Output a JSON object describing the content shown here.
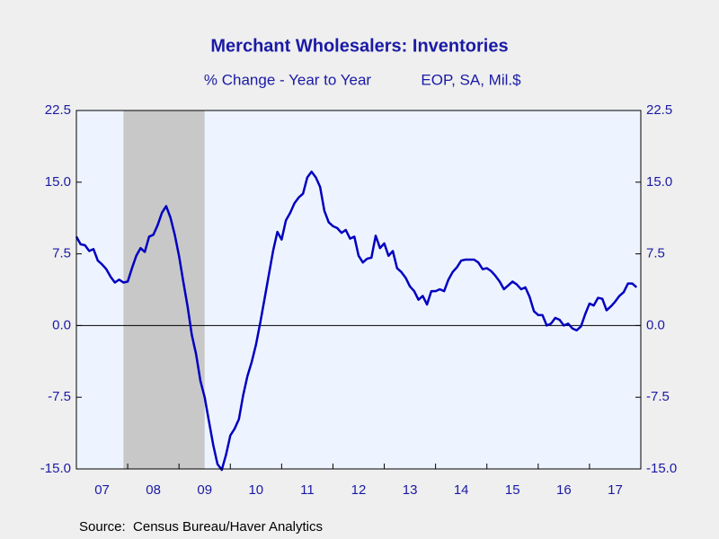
{
  "chart_data": {
    "type": "line",
    "title": "Merchant Wholesalers: Inventories",
    "subtitle": "% Change - Year to Year",
    "subtitle2": "EOP, SA, Mil.$",
    "source": "Source:  Census Bureau/Haver Analytics",
    "color": "#0000c0",
    "recession_color": "#c8c8c8",
    "recessions": [
      {
        "start": 2007.917,
        "end": 2009.5
      }
    ],
    "x": [
      2007,
      2007.083,
      2007.167,
      2007.25,
      2007.333,
      2007.417,
      2007.5,
      2007.583,
      2007.667,
      2007.75,
      2007.833,
      2007.917,
      2008,
      2008.083,
      2008.167,
      2008.25,
      2008.333,
      2008.417,
      2008.5,
      2008.583,
      2008.667,
      2008.75,
      2008.833,
      2008.917,
      2009,
      2009.083,
      2009.167,
      2009.25,
      2009.333,
      2009.417,
      2009.5,
      2009.583,
      2009.667,
      2009.75,
      2009.833,
      2009.917,
      2010,
      2010.083,
      2010.167,
      2010.25,
      2010.333,
      2010.417,
      2010.5,
      2010.583,
      2010.667,
      2010.75,
      2010.833,
      2010.917,
      2011,
      2011.083,
      2011.167,
      2011.25,
      2011.333,
      2011.417,
      2011.5,
      2011.583,
      2011.667,
      2011.75,
      2011.833,
      2011.917,
      2012,
      2012.083,
      2012.167,
      2012.25,
      2012.333,
      2012.417,
      2012.5,
      2012.583,
      2012.667,
      2012.75,
      2012.833,
      2012.917,
      2013,
      2013.083,
      2013.167,
      2013.25,
      2013.333,
      2013.417,
      2013.5,
      2013.583,
      2013.667,
      2013.75,
      2013.833,
      2013.917,
      2014,
      2014.083,
      2014.167,
      2014.25,
      2014.333,
      2014.417,
      2014.5,
      2014.583,
      2014.667,
      2014.75,
      2014.833,
      2014.917,
      2015,
      2015.083,
      2015.167,
      2015.25,
      2015.333,
      2015.417,
      2015.5,
      2015.583,
      2015.667,
      2015.75,
      2015.833,
      2015.917,
      2016,
      2016.083,
      2016.167,
      2016.25,
      2016.333,
      2016.417,
      2016.5,
      2016.583,
      2016.667,
      2016.75,
      2016.833,
      2016.917,
      2017,
      2017.083,
      2017.167,
      2017.25,
      2017.333,
      2017.417,
      2017.5,
      2017.583,
      2017.667,
      2017.75,
      2017.833,
      2017.917
    ],
    "values": [
      9.3,
      8.5,
      8.4,
      7.8,
      8.0,
      6.8,
      6.4,
      5.9,
      5.1,
      4.5,
      4.8,
      4.5,
      4.6,
      6.0,
      7.3,
      8.1,
      7.7,
      9.3,
      9.5,
      10.5,
      11.8,
      12.5,
      11.3,
      9.5,
      7.3,
      4.6,
      2.0,
      -1.0,
      -3.0,
      -5.8,
      -7.5,
      -10.0,
      -12.5,
      -14.5,
      -15.1,
      -13.5,
      -11.5,
      -10.8,
      -9.8,
      -7.3,
      -5.3,
      -3.8,
      -2.0,
      0.3,
      2.8,
      5.3,
      7.8,
      9.8,
      9.0,
      11.0,
      11.8,
      12.8,
      13.4,
      13.8,
      15.5,
      16.1,
      15.5,
      14.5,
      12.0,
      10.8,
      10.4,
      10.2,
      9.7,
      10.0,
      9.1,
      9.3,
      7.3,
      6.6,
      7.0,
      7.1,
      9.4,
      8.1,
      8.6,
      7.3,
      7.8,
      6.0,
      5.6,
      5.0,
      4.1,
      3.6,
      2.7,
      3.1,
      2.2,
      3.6,
      3.6,
      3.8,
      3.6,
      4.8,
      5.6,
      6.1,
      6.8,
      6.9,
      6.9,
      6.9,
      6.6,
      5.9,
      6.0,
      5.7,
      5.2,
      4.6,
      3.8,
      4.2,
      4.6,
      4.3,
      3.8,
      4.0,
      3.0,
      1.5,
      1.1,
      1.1,
      0.0,
      0.2,
      0.8,
      0.6,
      0.0,
      0.2,
      -0.3,
      -0.5,
      -0.1,
      1.2,
      2.3,
      2.1,
      2.9,
      2.8,
      1.6,
      2.0,
      2.5,
      3.1,
      3.5,
      4.4,
      4.4,
      4.0
    ],
    "xlim": [
      2007,
      2018
    ],
    "xminor": [
      2007,
      2008,
      2009,
      2010,
      2011,
      2012,
      2013,
      2014,
      2015,
      2016,
      2017,
      2018
    ],
    "xticks": [
      {
        "value": 2007.5,
        "label": "07"
      },
      {
        "value": 2008.5,
        "label": "08"
      },
      {
        "value": 2009.5,
        "label": "09"
      },
      {
        "value": 2010.5,
        "label": "10"
      },
      {
        "value": 2011.5,
        "label": "11"
      },
      {
        "value": 2012.5,
        "label": "12"
      },
      {
        "value": 2013.5,
        "label": "13"
      },
      {
        "value": 2014.5,
        "label": "14"
      },
      {
        "value": 2015.5,
        "label": "15"
      },
      {
        "value": 2016.5,
        "label": "16"
      },
      {
        "value": 2017.5,
        "label": "17"
      }
    ],
    "ylim": [
      -15,
      22.5
    ],
    "yticks": [
      {
        "value": -15,
        "label": "-15.0"
      },
      -7.5,
      {
        "value": 0,
        "label": "0.0"
      },
      7.5,
      {
        "value": 15,
        "label": "15.0"
      },
      22.5
    ]
  }
}
